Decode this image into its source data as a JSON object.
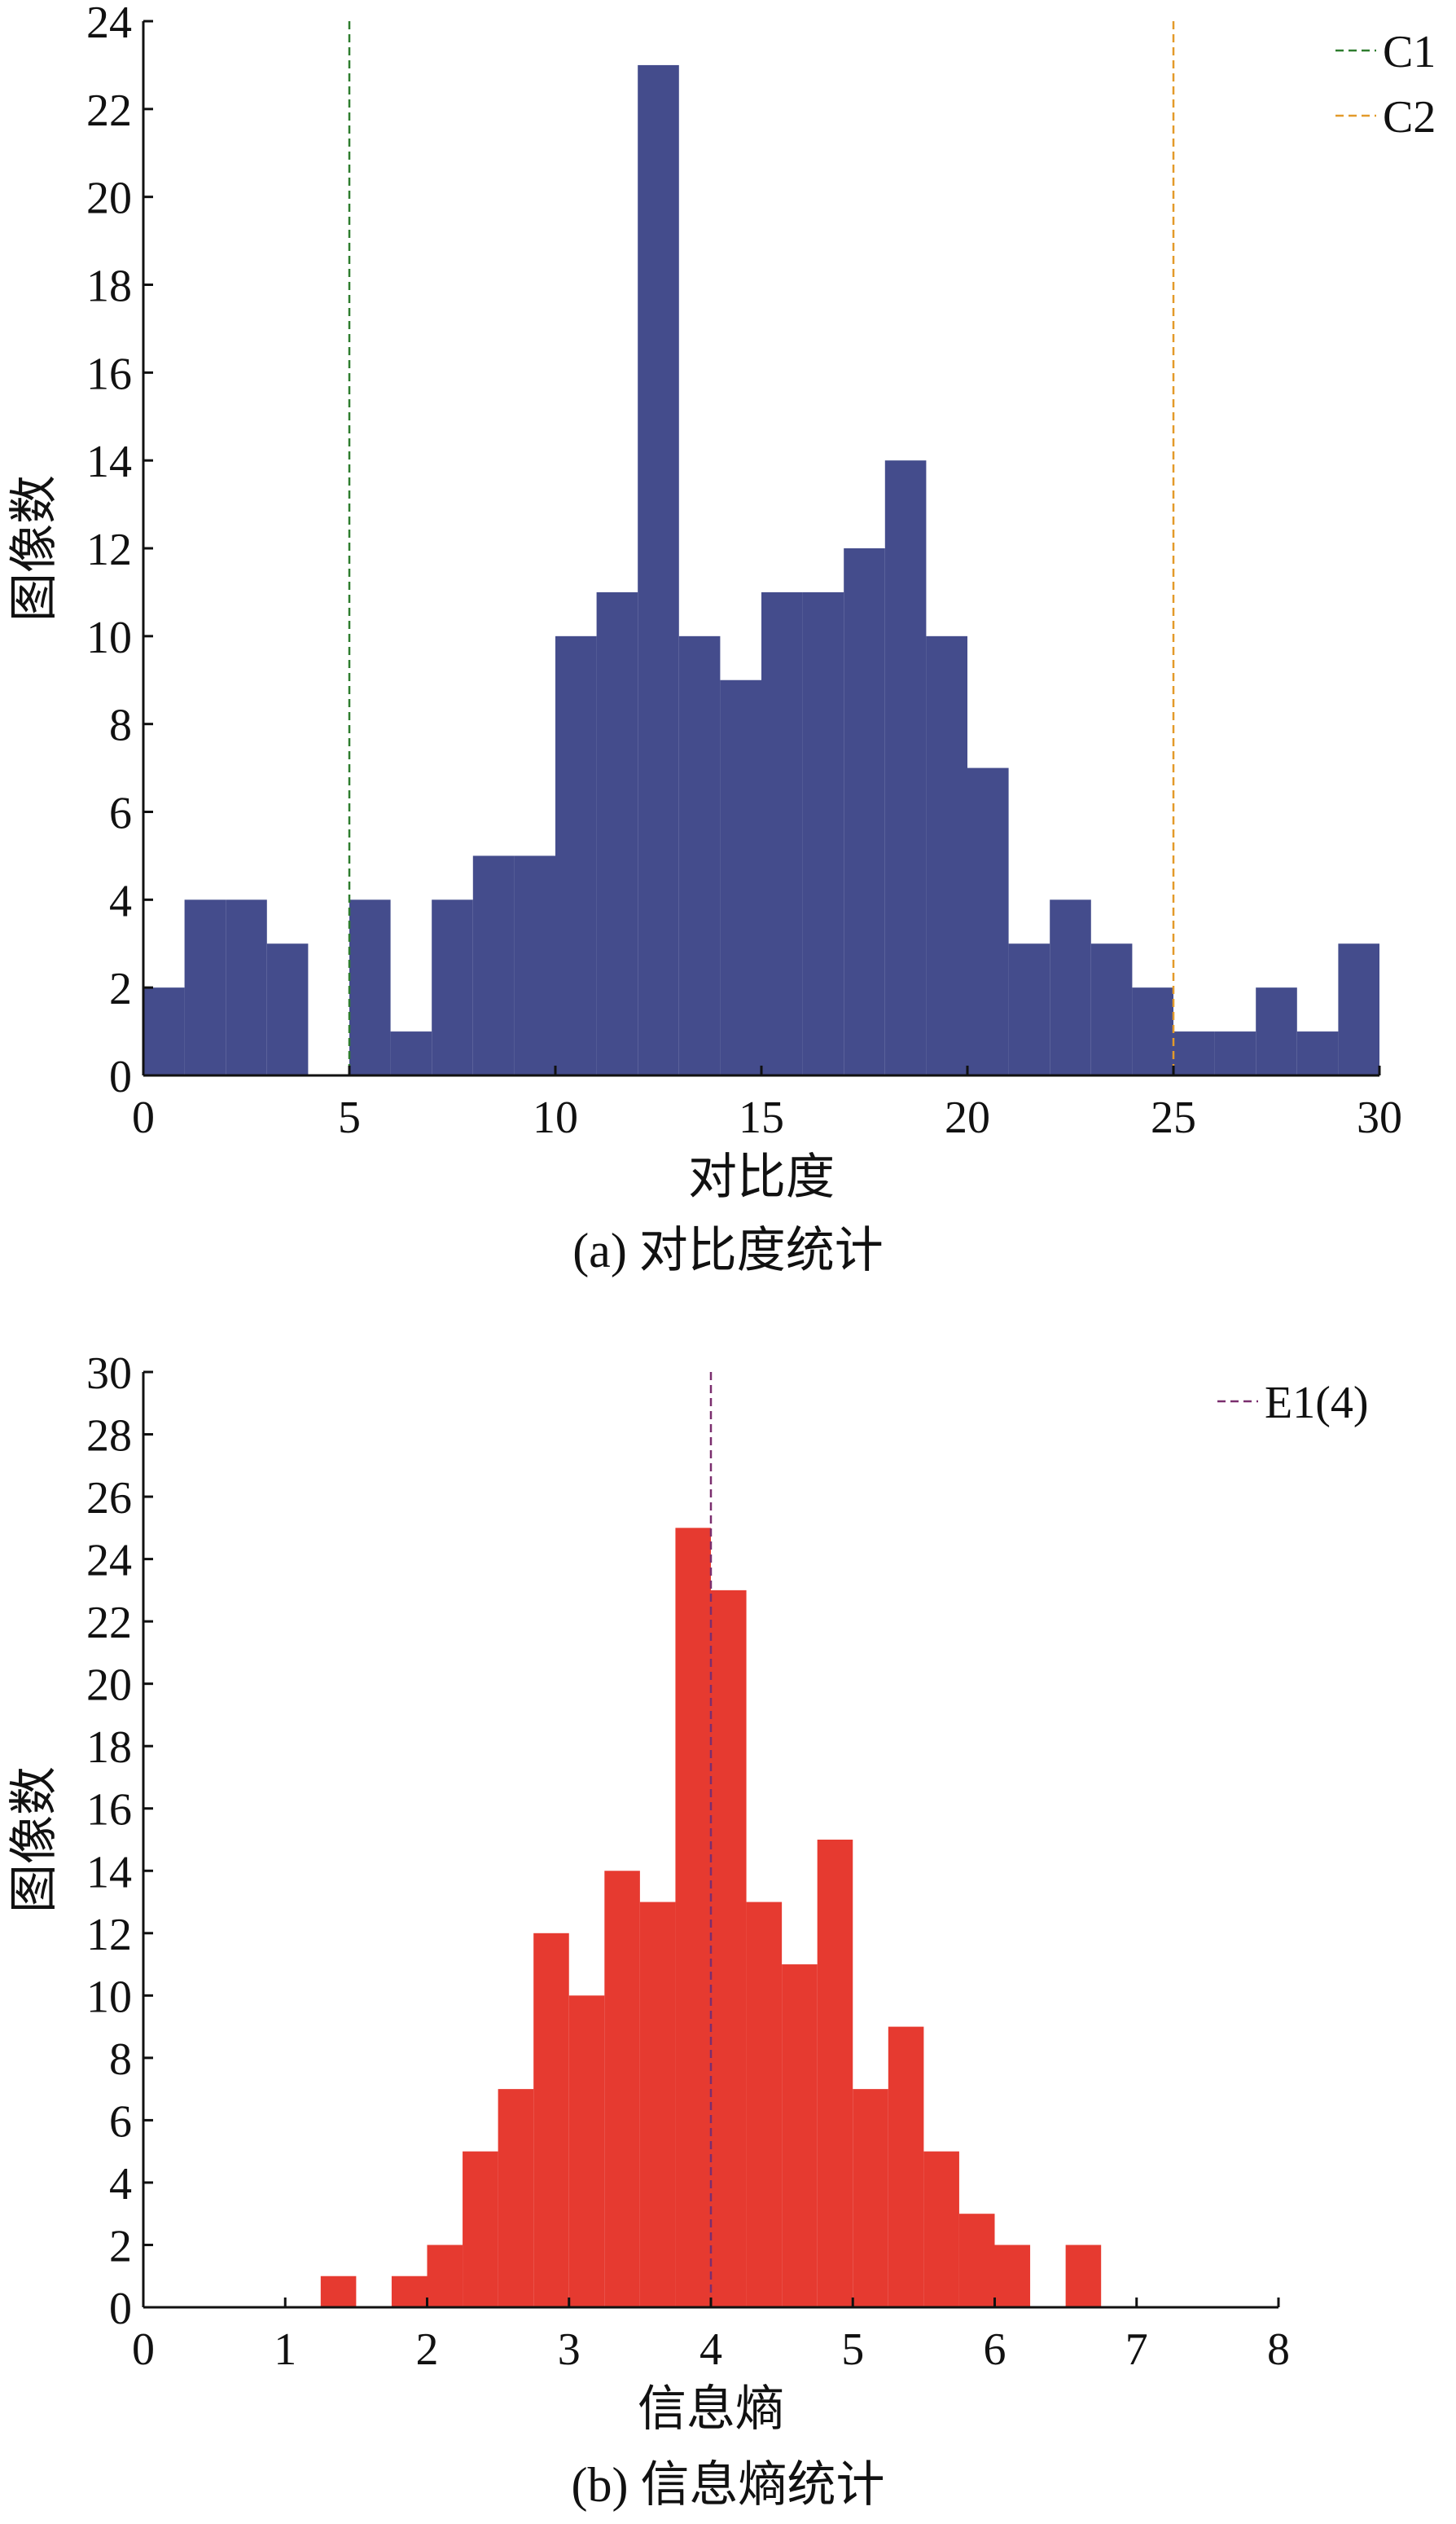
{
  "chart_data": [
    {
      "type": "bar",
      "panel": "a",
      "ylabel": "图像数",
      "xlabel": "对比度",
      "caption": "(a) 对比度统计",
      "xlim": [
        0,
        30
      ],
      "ylim": [
        0,
        24
      ],
      "xticks": [
        0,
        5,
        10,
        15,
        20,
        25,
        30
      ],
      "yticks": [
        0,
        2,
        4,
        6,
        8,
        10,
        12,
        14,
        16,
        18,
        20,
        22,
        24
      ],
      "bin_width": 1,
      "bin_starts": [
        0,
        1,
        2,
        3,
        4,
        5,
        6,
        7,
        8,
        9,
        10,
        11,
        12,
        13,
        14,
        15,
        16,
        17,
        18,
        19,
        20,
        21,
        22,
        23,
        24,
        25,
        26,
        27,
        28,
        29
      ],
      "values": [
        2,
        4,
        4,
        3,
        0,
        4,
        1,
        4,
        5,
        5,
        10,
        11,
        23,
        10,
        9,
        11,
        11,
        12,
        14,
        10,
        7,
        3,
        4,
        3,
        2,
        1,
        1,
        2,
        1,
        3
      ],
      "bar_color": "#444c8c",
      "reference_lines": [
        {
          "name": "C1",
          "x": 5,
          "color": "#2e7d2e"
        },
        {
          "name": "C2",
          "x": 25,
          "color": "#e39a2a"
        }
      ],
      "legend_position": "top-right"
    },
    {
      "type": "bar",
      "panel": "b",
      "ylabel": "图像数",
      "xlabel": "信息熵",
      "caption": "(b) 信息熵统计",
      "xlim": [
        0,
        8
      ],
      "ylim": [
        0,
        30
      ],
      "xticks": [
        0,
        1,
        2,
        3,
        4,
        5,
        6,
        7,
        8
      ],
      "yticks": [
        0,
        2,
        4,
        6,
        8,
        10,
        12,
        14,
        16,
        18,
        20,
        22,
        24,
        26,
        28,
        30
      ],
      "bin_width": 0.25,
      "bin_starts": [
        1.25,
        1.5,
        1.75,
        2.0,
        2.25,
        2.5,
        2.75,
        3.0,
        3.25,
        3.5,
        3.75,
        4.0,
        4.25,
        4.5,
        4.75,
        5.0,
        5.25,
        5.5,
        5.75,
        6.0,
        6.25,
        6.5
      ],
      "values": [
        1,
        0,
        1,
        2,
        5,
        7,
        12,
        10,
        14,
        13,
        25,
        23,
        13,
        11,
        15,
        7,
        9,
        5,
        3,
        2,
        0,
        2
      ],
      "bar_color": "#e63a30",
      "reference_lines": [
        {
          "name": "E1(4)",
          "x": 4,
          "color": "#7a2e6e"
        }
      ],
      "legend_position": "top-right"
    }
  ]
}
